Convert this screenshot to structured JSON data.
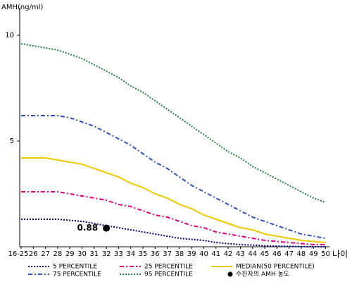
{
  "chart_data": {
    "type": "line",
    "y_label": "AMH(ng/ml)",
    "x_label": "나이",
    "categories": [
      "16-25",
      "26",
      "27",
      "28",
      "29",
      "30",
      "31",
      "32",
      "33",
      "34",
      "35",
      "36",
      "37",
      "38",
      "39",
      "40",
      "41",
      "42",
      "43",
      "44",
      "45",
      "46",
      "47",
      "48",
      "49",
      "50"
    ],
    "ylim": [
      0,
      11.3
    ],
    "yticks": [
      5,
      10
    ],
    "series": [
      {
        "name": "5 PERCENTILE",
        "color": "#000080",
        "dash": "2 2",
        "values": [
          1.3,
          1.3,
          1.3,
          1.3,
          1.25,
          1.2,
          1.1,
          1.0,
          0.9,
          0.8,
          0.7,
          0.6,
          0.5,
          0.4,
          0.35,
          0.3,
          0.2,
          0.15,
          0.1,
          0.08,
          0.05,
          0.03,
          0.02,
          0.01,
          0,
          0
        ]
      },
      {
        "name": "25 PERCENTILE",
        "color": "#e0007f",
        "dash": "6 3 2 3",
        "values": [
          2.6,
          2.6,
          2.6,
          2.6,
          2.5,
          2.4,
          2.3,
          2.2,
          2.0,
          1.9,
          1.7,
          1.5,
          1.4,
          1.2,
          1.0,
          0.9,
          0.7,
          0.6,
          0.5,
          0.4,
          0.3,
          0.25,
          0.2,
          0.15,
          0.1,
          0.1
        ]
      },
      {
        "name": "MEDIAN(50 PERCENTILE)",
        "color": "#f0c800",
        "dash": "none",
        "values": [
          4.2,
          4.2,
          4.2,
          4.1,
          4.0,
          3.9,
          3.7,
          3.5,
          3.3,
          3.0,
          2.8,
          2.5,
          2.3,
          2.0,
          1.8,
          1.5,
          1.3,
          1.1,
          0.9,
          0.8,
          0.6,
          0.5,
          0.4,
          0.3,
          0.25,
          0.2
        ]
      },
      {
        "name": "75 PERCENTILE",
        "color": "#3050c0",
        "dash": "6 3 2 3",
        "values": [
          6.2,
          6.2,
          6.2,
          6.2,
          6.1,
          5.9,
          5.7,
          5.4,
          5.1,
          4.8,
          4.4,
          4.0,
          3.7,
          3.3,
          2.9,
          2.6,
          2.3,
          2.0,
          1.7,
          1.4,
          1.2,
          1.0,
          0.8,
          0.6,
          0.5,
          0.4
        ]
      },
      {
        "name": "95 PERCENTILE",
        "color": "#208040",
        "dash": "2 2",
        "values": [
          9.6,
          9.5,
          9.4,
          9.3,
          9.1,
          8.9,
          8.6,
          8.3,
          8.0,
          7.6,
          7.3,
          6.9,
          6.5,
          6.1,
          5.7,
          5.3,
          4.9,
          4.5,
          4.2,
          3.8,
          3.5,
          3.2,
          2.9,
          2.6,
          2.3,
          2.1
        ]
      },
      {
        "name": "수진자의 AMH 농도",
        "color": "#000000",
        "marker": "dot",
        "x": [
          "32"
        ],
        "values": [
          0.88
        ],
        "value_labels": [
          "0.88"
        ]
      }
    ]
  }
}
